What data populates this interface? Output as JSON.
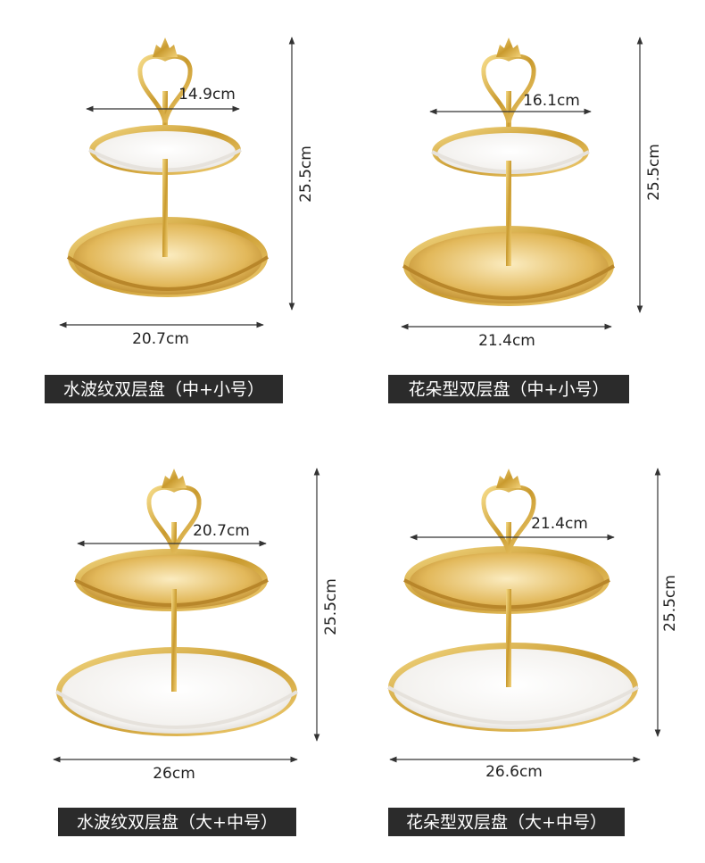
{
  "products": [
    {
      "top_width": "14.9cm",
      "bottom_width": "20.7cm",
      "height": "25.5cm",
      "caption": "水波纹双层盘（中+小号）"
    },
    {
      "top_width": "16.1cm",
      "bottom_width": "21.4cm",
      "height": "25.5cm",
      "caption": "花朵型双层盘（中+小号）"
    },
    {
      "top_width": "20.7cm",
      "bottom_width": "26cm",
      "height": "25.5cm",
      "caption": "水波纹双层盘（大+中号）"
    },
    {
      "top_width": "21.4cm",
      "bottom_width": "26.6cm",
      "height": "25.5cm",
      "caption": "花朵型双层盘（大+中号）"
    }
  ]
}
